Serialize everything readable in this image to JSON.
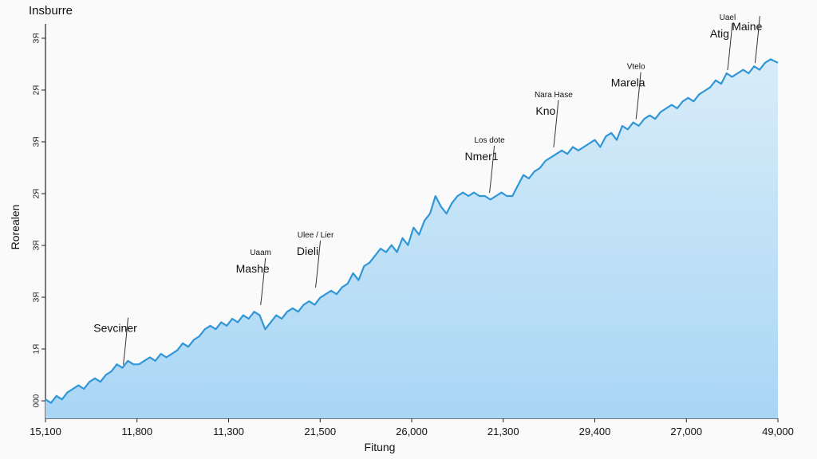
{
  "chart_data": {
    "type": "area",
    "title": "Insburre",
    "xlabel": "Fitung",
    "ylabel": "Rorealen",
    "x_ticks": [
      "15,100",
      "11,800",
      "11,300",
      "21,500",
      "26,000",
      "21,300",
      "29,400",
      "27,000",
      "49,000"
    ],
    "y_ticks": [
      "ЗЯ",
      "2Я",
      "ЗЯ",
      "2Я",
      "ЗЯ",
      "ЗЯ",
      "1Я",
      "000"
    ],
    "xlim": [
      0,
      8
    ],
    "ylim": [
      0,
      1
    ],
    "grid": false,
    "series": [
      {
        "name": "series",
        "color": "#2f96d8",
        "fill": "#bfe0f6",
        "points": [
          [
            0.0,
            0.02
          ],
          [
            0.06,
            0.01
          ],
          [
            0.12,
            0.03
          ],
          [
            0.18,
            0.02
          ],
          [
            0.24,
            0.04
          ],
          [
            0.3,
            0.05
          ],
          [
            0.36,
            0.06
          ],
          [
            0.42,
            0.05
          ],
          [
            0.48,
            0.07
          ],
          [
            0.54,
            0.08
          ],
          [
            0.6,
            0.07
          ],
          [
            0.66,
            0.09
          ],
          [
            0.72,
            0.1
          ],
          [
            0.78,
            0.12
          ],
          [
            0.84,
            0.11
          ],
          [
            0.9,
            0.13
          ],
          [
            0.96,
            0.12
          ],
          [
            1.02,
            0.12
          ],
          [
            1.08,
            0.13
          ],
          [
            1.14,
            0.14
          ],
          [
            1.2,
            0.13
          ],
          [
            1.26,
            0.15
          ],
          [
            1.32,
            0.14
          ],
          [
            1.38,
            0.15
          ],
          [
            1.44,
            0.16
          ],
          [
            1.5,
            0.18
          ],
          [
            1.56,
            0.17
          ],
          [
            1.62,
            0.19
          ],
          [
            1.68,
            0.2
          ],
          [
            1.74,
            0.22
          ],
          [
            1.8,
            0.23
          ],
          [
            1.86,
            0.22
          ],
          [
            1.92,
            0.24
          ],
          [
            1.98,
            0.23
          ],
          [
            2.04,
            0.25
          ],
          [
            2.1,
            0.24
          ],
          [
            2.16,
            0.26
          ],
          [
            2.22,
            0.25
          ],
          [
            2.28,
            0.27
          ],
          [
            2.34,
            0.26
          ],
          [
            2.4,
            0.22
          ],
          [
            2.46,
            0.24
          ],
          [
            2.52,
            0.26
          ],
          [
            2.58,
            0.25
          ],
          [
            2.64,
            0.27
          ],
          [
            2.7,
            0.28
          ],
          [
            2.76,
            0.27
          ],
          [
            2.82,
            0.29
          ],
          [
            2.88,
            0.3
          ],
          [
            2.94,
            0.29
          ],
          [
            3.0,
            0.31
          ],
          [
            3.06,
            0.32
          ],
          [
            3.12,
            0.33
          ],
          [
            3.18,
            0.32
          ],
          [
            3.24,
            0.34
          ],
          [
            3.3,
            0.35
          ],
          [
            3.36,
            0.38
          ],
          [
            3.42,
            0.36
          ],
          [
            3.48,
            0.4
          ],
          [
            3.54,
            0.41
          ],
          [
            3.6,
            0.43
          ],
          [
            3.66,
            0.45
          ],
          [
            3.72,
            0.44
          ],
          [
            3.78,
            0.46
          ],
          [
            3.84,
            0.44
          ],
          [
            3.9,
            0.48
          ],
          [
            3.96,
            0.46
          ],
          [
            4.02,
            0.51
          ],
          [
            4.08,
            0.49
          ],
          [
            4.14,
            0.53
          ],
          [
            4.2,
            0.55
          ],
          [
            4.26,
            0.6
          ],
          [
            4.32,
            0.57
          ],
          [
            4.38,
            0.55
          ],
          [
            4.44,
            0.58
          ],
          [
            4.5,
            0.6
          ],
          [
            4.56,
            0.61
          ],
          [
            4.62,
            0.6
          ],
          [
            4.68,
            0.61
          ],
          [
            4.74,
            0.6
          ],
          [
            4.8,
            0.6
          ],
          [
            4.86,
            0.59
          ],
          [
            4.92,
            0.6
          ],
          [
            4.98,
            0.61
          ],
          [
            5.04,
            0.6
          ],
          [
            5.1,
            0.6
          ],
          [
            5.16,
            0.63
          ],
          [
            5.22,
            0.66
          ],
          [
            5.28,
            0.65
          ],
          [
            5.34,
            0.67
          ],
          [
            5.4,
            0.68
          ],
          [
            5.46,
            0.7
          ],
          [
            5.52,
            0.71
          ],
          [
            5.58,
            0.72
          ],
          [
            5.64,
            0.73
          ],
          [
            5.7,
            0.72
          ],
          [
            5.76,
            0.74
          ],
          [
            5.82,
            0.73
          ],
          [
            5.88,
            0.74
          ],
          [
            5.94,
            0.75
          ],
          [
            6.0,
            0.76
          ],
          [
            6.06,
            0.74
          ],
          [
            6.12,
            0.77
          ],
          [
            6.18,
            0.78
          ],
          [
            6.24,
            0.76
          ],
          [
            6.3,
            0.8
          ],
          [
            6.36,
            0.79
          ],
          [
            6.42,
            0.81
          ],
          [
            6.48,
            0.8
          ],
          [
            6.54,
            0.82
          ],
          [
            6.6,
            0.83
          ],
          [
            6.66,
            0.82
          ],
          [
            6.72,
            0.84
          ],
          [
            6.78,
            0.85
          ],
          [
            6.84,
            0.86
          ],
          [
            6.9,
            0.85
          ],
          [
            6.96,
            0.87
          ],
          [
            7.02,
            0.88
          ],
          [
            7.08,
            0.87
          ],
          [
            7.14,
            0.89
          ],
          [
            7.2,
            0.9
          ],
          [
            7.26,
            0.91
          ],
          [
            7.32,
            0.93
          ],
          [
            7.38,
            0.92
          ],
          [
            7.44,
            0.95
          ],
          [
            7.5,
            0.94
          ],
          [
            7.56,
            0.95
          ],
          [
            7.62,
            0.96
          ],
          [
            7.68,
            0.95
          ],
          [
            7.74,
            0.97
          ],
          [
            7.8,
            0.96
          ],
          [
            7.86,
            0.98
          ],
          [
            7.92,
            0.99
          ],
          [
            8.0,
            0.98
          ]
        ]
      }
    ],
    "annotations": [
      {
        "main": "Sevciner",
        "small": "",
        "x": 0.85,
        "y": 0.11
      },
      {
        "main": "Mashe",
        "small": "Uaam",
        "x": 2.35,
        "y": 0.28
      },
      {
        "main": "Dieli",
        "small": "Ulee / Lier",
        "x": 2.95,
        "y": 0.33
      },
      {
        "main": "Nmer1",
        "small": "Los  dote",
        "x": 4.85,
        "y": 0.6
      },
      {
        "main": "Kno",
        "small": "Nara   Hase",
        "x": 5.55,
        "y": 0.73
      },
      {
        "main": "Marela",
        "small": "Vtelo",
        "x": 6.45,
        "y": 0.81
      },
      {
        "main": "Atig",
        "small": "Uael",
        "x": 7.45,
        "y": 0.95
      },
      {
        "main": "Maine",
        "small": "",
        "x": 7.75,
        "y": 0.97
      }
    ]
  }
}
